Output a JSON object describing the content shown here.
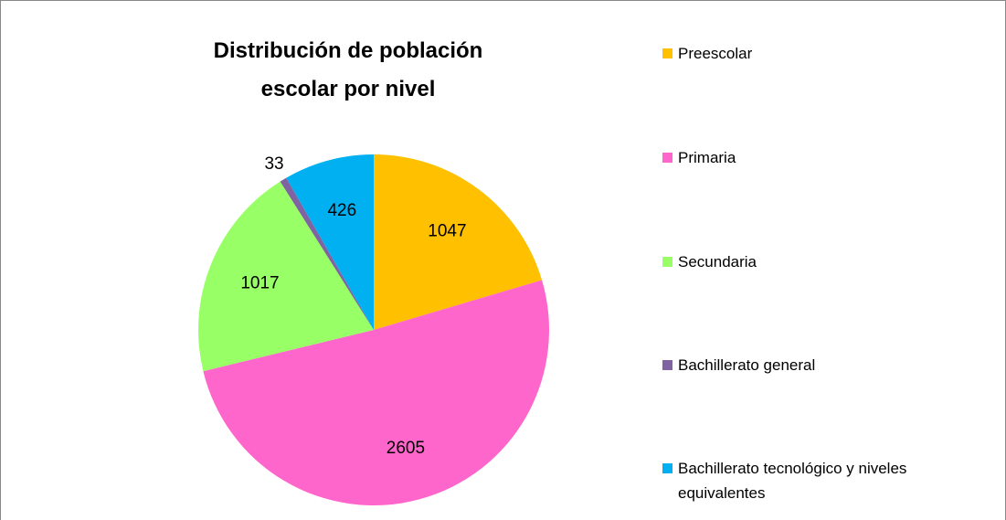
{
  "chart_data": {
    "type": "pie",
    "title": "Distribución de población escolar por nivel",
    "categories": [
      "Preescolar",
      "Primaria",
      "Secundaria",
      "Bachillerato general",
      "Bachillerato tecnológico y niveles equivalentes"
    ],
    "values": [
      1047,
      2605,
      1017,
      33,
      426
    ],
    "colors": [
      "#ffc000",
      "#ff66cc",
      "#99ff66",
      "#8064a2",
      "#00b0f0"
    ],
    "legend": "right"
  }
}
